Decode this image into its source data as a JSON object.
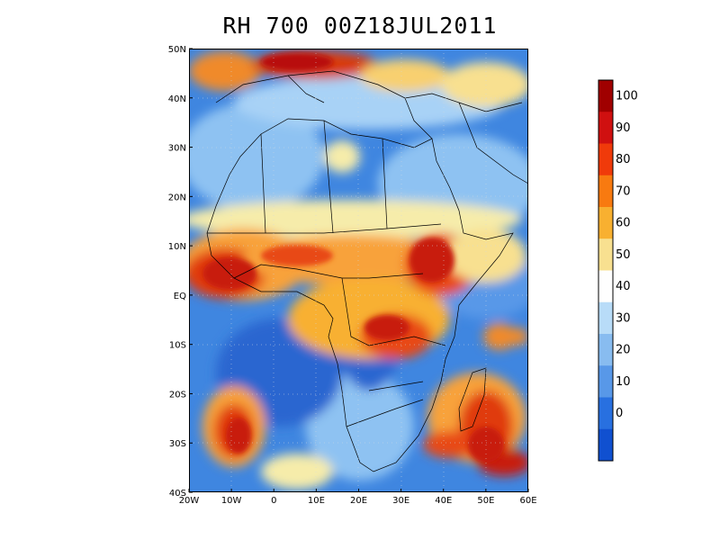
{
  "title": "RH 700 00Z18JUL2011",
  "map": {
    "lon_range": [
      -20,
      60
    ],
    "lat_range": [
      -40,
      50
    ],
    "lat_ticks": [
      "50N",
      "40N",
      "30N",
      "20N",
      "10N",
      "EQ",
      "10S",
      "20S",
      "30S",
      "40S"
    ],
    "lon_ticks": [
      "20W",
      "10W",
      "0",
      "10E",
      "20E",
      "30E",
      "40E",
      "50E",
      "60E"
    ]
  },
  "colorbar": {
    "labels": [
      "100",
      "90",
      "80",
      "70",
      "60",
      "50",
      "40",
      "30",
      "20",
      "10",
      "0"
    ],
    "colors": [
      "#a00000",
      "#d01010",
      "#f03a0a",
      "#f87a10",
      "#f8b030",
      "#f8e090",
      "#fefefe",
      "#b8dcf8",
      "#88bcf0",
      "#5898e8",
      "#2870e0",
      "#1050d0"
    ]
  },
  "colors": {
    "ocean_dry": "#2a6fd6",
    "light_blue": "#8ec2f2",
    "pale": "#f6ecaa",
    "orange": "#f8a23a",
    "red_orange": "#ee4a14",
    "deep_red": "#c81a0a",
    "boundary": "#000000"
  }
}
